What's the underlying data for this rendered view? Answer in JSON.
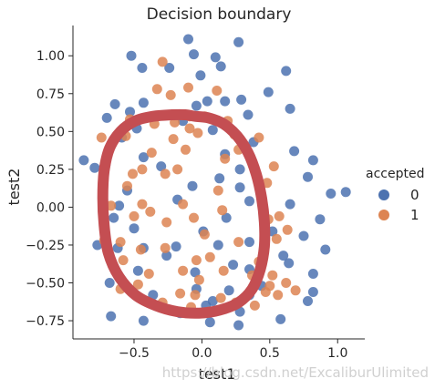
{
  "chart_data": {
    "type": "scatter",
    "title": "Decision boundary",
    "xlabel": "test1",
    "ylabel": "test2",
    "xlim": [
      -0.95,
      1.2
    ],
    "ylim": [
      -0.87,
      1.2
    ],
    "xticks": [
      -0.5,
      0.0,
      0.5,
      1.0
    ],
    "xtick_labels": [
      "−0.5",
      "0.0",
      "0.5",
      "1.0"
    ],
    "yticks": [
      -0.75,
      -0.5,
      -0.25,
      0.0,
      0.25,
      0.5,
      0.75,
      1.0
    ],
    "ytick_labels": [
      "−0.75",
      "−0.50",
      "−0.25",
      "0.00",
      "0.25",
      "0.50",
      "0.75",
      "1.00"
    ],
    "grid": false,
    "legend": {
      "title": "accepted",
      "placement": "center-right",
      "entries": [
        "0",
        "1"
      ]
    },
    "series": [
      {
        "name": "0",
        "color": "#4c72b0",
        "points": [
          [
            -0.1,
            1.11
          ],
          [
            0.27,
            1.09
          ],
          [
            -0.52,
            1.0
          ],
          [
            -0.06,
            1.01
          ],
          [
            0.1,
            0.99
          ],
          [
            -0.44,
            0.92
          ],
          [
            -0.24,
            0.92
          ],
          [
            0.14,
            0.93
          ],
          [
            0.62,
            0.9
          ],
          [
            -0.01,
            0.87
          ],
          [
            0.49,
            0.76
          ],
          [
            0.17,
            0.7
          ],
          [
            -0.64,
            0.68
          ],
          [
            -0.43,
            0.69
          ],
          [
            -0.04,
            0.67
          ],
          [
            0.04,
            0.7
          ],
          [
            0.29,
            0.71
          ],
          [
            -0.53,
            0.63
          ],
          [
            0.34,
            0.61
          ],
          [
            0.65,
            0.65
          ],
          [
            -0.7,
            0.59
          ],
          [
            -0.14,
            0.57
          ],
          [
            -0.48,
            0.52
          ],
          [
            0.08,
            0.51
          ],
          [
            -0.59,
            0.46
          ],
          [
            0.38,
            0.43
          ],
          [
            0.17,
            0.35
          ],
          [
            0.68,
            0.37
          ],
          [
            -0.43,
            0.33
          ],
          [
            -0.71,
            0.28
          ],
          [
            -0.3,
            0.27
          ],
          [
            0.28,
            0.25
          ],
          [
            -0.87,
            0.31
          ],
          [
            0.82,
            0.31
          ],
          [
            -0.79,
            0.26
          ],
          [
            0.78,
            0.2
          ],
          [
            0.13,
            0.19
          ],
          [
            -0.07,
            0.14
          ],
          [
            0.28,
            0.13
          ],
          [
            -0.55,
            0.11
          ],
          [
            1.06,
            0.1
          ],
          [
            0.95,
            0.09
          ],
          [
            -0.61,
            0.01
          ],
          [
            -0.18,
            0.05
          ],
          [
            0.35,
            0.04
          ],
          [
            0.65,
            0.02
          ],
          [
            -0.65,
            -0.07
          ],
          [
            0.87,
            -0.08
          ],
          [
            0.18,
            -0.07
          ],
          [
            0.52,
            -0.16
          ],
          [
            -0.5,
            -0.14
          ],
          [
            0.75,
            -0.19
          ],
          [
            -0.77,
            -0.25
          ],
          [
            0.01,
            -0.16
          ],
          [
            0.35,
            -0.23
          ],
          [
            -0.62,
            -0.27
          ],
          [
            -0.19,
            -0.26
          ],
          [
            0.12,
            -0.25
          ],
          [
            0.91,
            -0.28
          ],
          [
            -0.43,
            -0.27
          ],
          [
            -0.26,
            -0.32
          ],
          [
            0.6,
            -0.32
          ],
          [
            0.64,
            -0.37
          ],
          [
            0.82,
            -0.44
          ],
          [
            -0.47,
            -0.42
          ],
          [
            -0.05,
            -0.43
          ],
          [
            0.23,
            -0.38
          ],
          [
            0.35,
            -0.41
          ],
          [
            -0.68,
            -0.5
          ],
          [
            0.44,
            -0.52
          ],
          [
            -0.04,
            -0.54
          ],
          [
            0.2,
            -0.55
          ],
          [
            0.82,
            -0.56
          ],
          [
            -0.36,
            -0.58
          ],
          [
            0.35,
            -0.58
          ],
          [
            0.78,
            -0.62
          ],
          [
            0.03,
            -0.65
          ],
          [
            -0.16,
            -0.7
          ],
          [
            0.28,
            -0.69
          ],
          [
            0.58,
            -0.74
          ],
          [
            0.06,
            -0.76
          ],
          [
            0.27,
            -0.78
          ],
          [
            -0.43,
            -0.75
          ],
          [
            -0.67,
            -0.72
          ],
          [
            0.08,
            -0.62
          ]
        ]
      },
      {
        "name": "1",
        "color": "#dd8452",
        "points": [
          [
            -0.29,
            0.96
          ],
          [
            -0.33,
            0.78
          ],
          [
            -0.1,
            0.79
          ],
          [
            0.11,
            0.77
          ],
          [
            -0.23,
            0.74
          ],
          [
            -0.2,
            0.56
          ],
          [
            -0.09,
            0.6
          ],
          [
            0.02,
            0.6
          ],
          [
            0.19,
            0.57
          ],
          [
            -0.53,
            0.58
          ],
          [
            -0.35,
            0.55
          ],
          [
            -0.37,
            0.36
          ],
          [
            -0.09,
            0.52
          ],
          [
            -0.56,
            0.47
          ],
          [
            -0.21,
            0.45
          ],
          [
            -0.03,
            0.49
          ],
          [
            0.24,
            0.48
          ],
          [
            -0.12,
            0.38
          ],
          [
            0.42,
            0.46
          ],
          [
            -0.74,
            0.46
          ],
          [
            0.27,
            0.38
          ],
          [
            -0.44,
            0.25
          ],
          [
            0.17,
            0.32
          ],
          [
            -0.51,
            0.22
          ],
          [
            -0.18,
            0.25
          ],
          [
            -0.55,
            0.14
          ],
          [
            0.53,
            0.27
          ],
          [
            -0.27,
            0.22
          ],
          [
            0.48,
            0.16
          ],
          [
            0.12,
            0.11
          ],
          [
            -0.44,
            0.02
          ],
          [
            -0.14,
            0.02
          ],
          [
            -0.38,
            -0.03
          ],
          [
            -0.67,
            0.01
          ],
          [
            -0.5,
            -0.06
          ],
          [
            -0.26,
            -0.1
          ],
          [
            -0.06,
            -0.07
          ],
          [
            0.15,
            -0.02
          ],
          [
            0.57,
            -0.06
          ],
          [
            -0.72,
            -0.14
          ],
          [
            0.02,
            -0.18
          ],
          [
            0.49,
            -0.08
          ],
          [
            -0.72,
            -0.22
          ],
          [
            0.55,
            -0.21
          ],
          [
            0.63,
            -0.15
          ],
          [
            -0.6,
            -0.23
          ],
          [
            -0.27,
            -0.27
          ],
          [
            -0.58,
            -0.35
          ],
          [
            0.27,
            -0.23
          ],
          [
            -0.45,
            -0.28
          ],
          [
            0.06,
            -0.33
          ],
          [
            0.42,
            -0.36
          ],
          [
            0.37,
            -0.45
          ],
          [
            0.52,
            -0.45
          ],
          [
            -0.39,
            -0.44
          ],
          [
            -0.02,
            -0.48
          ],
          [
            0.5,
            -0.52
          ],
          [
            0.62,
            -0.5
          ],
          [
            0.69,
            -0.55
          ],
          [
            -0.6,
            -0.54
          ],
          [
            -0.16,
            -0.57
          ],
          [
            -0.05,
            -0.58
          ],
          [
            0.47,
            -0.56
          ],
          [
            0.14,
            -0.6
          ],
          [
            0.25,
            -0.63
          ],
          [
            0.56,
            -0.58
          ],
          [
            -0.29,
            -0.63
          ],
          [
            0.39,
            -0.65
          ],
          [
            0.05,
            -0.69
          ],
          [
            -0.08,
            -0.66
          ],
          [
            -0.14,
            -0.42
          ],
          [
            -0.04,
            -0.35
          ],
          [
            0.16,
            -0.42
          ],
          [
            -0.47,
            -0.51
          ]
        ]
      }
    ],
    "boundary": {
      "color": "#c44e52",
      "points": [
        [
          -0.05,
          0.6
        ],
        [
          0.05,
          0.59
        ],
        [
          0.16,
          0.55
        ],
        [
          0.26,
          0.47
        ],
        [
          0.34,
          0.36
        ],
        [
          0.4,
          0.22
        ],
        [
          0.44,
          0.06
        ],
        [
          0.46,
          -0.1
        ],
        [
          0.46,
          -0.26
        ],
        [
          0.43,
          -0.41
        ],
        [
          0.37,
          -0.54
        ],
        [
          0.27,
          -0.63
        ],
        [
          0.13,
          -0.68
        ],
        [
          -0.02,
          -0.7
        ],
        [
          -0.18,
          -0.69
        ],
        [
          -0.34,
          -0.65
        ],
        [
          -0.49,
          -0.58
        ],
        [
          -0.61,
          -0.46
        ],
        [
          -0.69,
          -0.3
        ],
        [
          -0.72,
          -0.12
        ],
        [
          -0.73,
          0.06
        ],
        [
          -0.72,
          0.24
        ],
        [
          -0.68,
          0.39
        ],
        [
          -0.6,
          0.5
        ],
        [
          -0.49,
          0.57
        ],
        [
          -0.36,
          0.6
        ],
        [
          -0.22,
          0.61
        ],
        [
          -0.12,
          0.61
        ]
      ]
    },
    "watermark": "https://blog.csdn.net/ExcaliburUlimited"
  }
}
